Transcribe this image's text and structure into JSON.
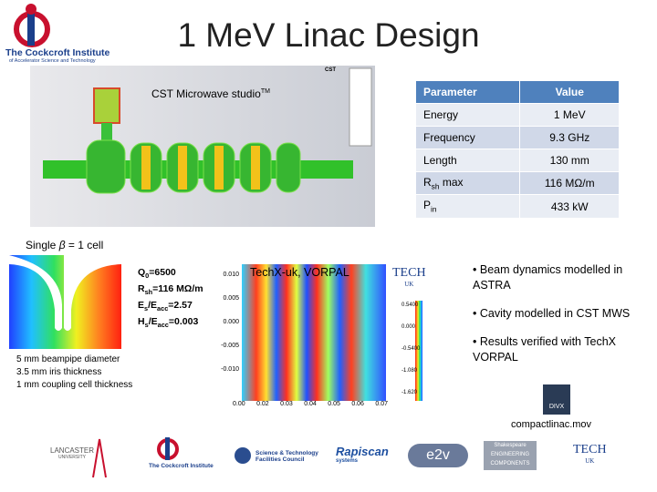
{
  "header": {
    "title": "1 MeV Linac Design",
    "logo": {
      "name": "The Cockcroft Institute",
      "tagline": "of Accelerator Science and Technology"
    }
  },
  "cst": {
    "caption": "CST Microwave studio",
    "caption_mark": "TM",
    "badge": "CST"
  },
  "table": {
    "headers": [
      "Parameter",
      "Value"
    ],
    "rows": [
      [
        {
          "main": "Energy"
        },
        "1 MeV"
      ],
      [
        {
          "main": "Frequency"
        },
        "9.3 GHz"
      ],
      [
        {
          "main": "Length"
        },
        "130 mm"
      ],
      [
        {
          "main": "R",
          "sub": "sh",
          "after": " max"
        },
        "116 MΩ/m"
      ],
      [
        {
          "main": "P",
          "sub": "in"
        },
        "433 kW"
      ]
    ]
  },
  "cell": {
    "heading": {
      "before": "Single ",
      "symbol": "β",
      "after": " = 1 cell"
    },
    "params": [
      {
        "main": "Q",
        "sub": "0",
        "after": "=6500"
      },
      {
        "main": "R",
        "sub": "sh",
        "after": "=116 MΩ/m"
      },
      {
        "main": "E",
        "sub": "s",
        "mid": "/E",
        "sub2": "acc",
        "after": "=2.57"
      },
      {
        "main": "H",
        "sub": "s",
        "mid": "/E",
        "sub2": "acc",
        "after": "=0.003"
      }
    ],
    "notes": [
      "5 mm beampipe diameter",
      "3.5 mm iris thickness",
      "1 mm coupling cell thickness"
    ]
  },
  "vorpal": {
    "title": "TechX-uk, VORPAL",
    "yticks": [
      "0.010",
      "0.005",
      "0.000",
      "-0.005",
      "-0.010"
    ],
    "xticks": [
      "0.00",
      "0.02",
      "0.03",
      "0.04",
      "0.05",
      "0.06",
      "0.07"
    ],
    "colorbar": [
      "0.5400",
      "0.000",
      "-0.5400",
      "-1.080",
      "-1.620"
    ]
  },
  "bullets": [
    "Beam dynamics modelled in ASTRA",
    "Cavity modelled in CST MWS",
    "Results verified with TechX VORPAL"
  ],
  "movie": {
    "label": "compactlinac.mov",
    "icon": "DIVX"
  },
  "footer": {
    "logos": [
      "LANCASTER",
      "UNIVERSITY",
      "The Cockcroft Institute",
      "Science & Technology",
      "Facilities Council",
      "Rapiscan",
      "systems",
      "e2v",
      "Shakespeare",
      "ENGINEERING",
      "COMPONENTS",
      "TECH",
      "UK"
    ]
  }
}
